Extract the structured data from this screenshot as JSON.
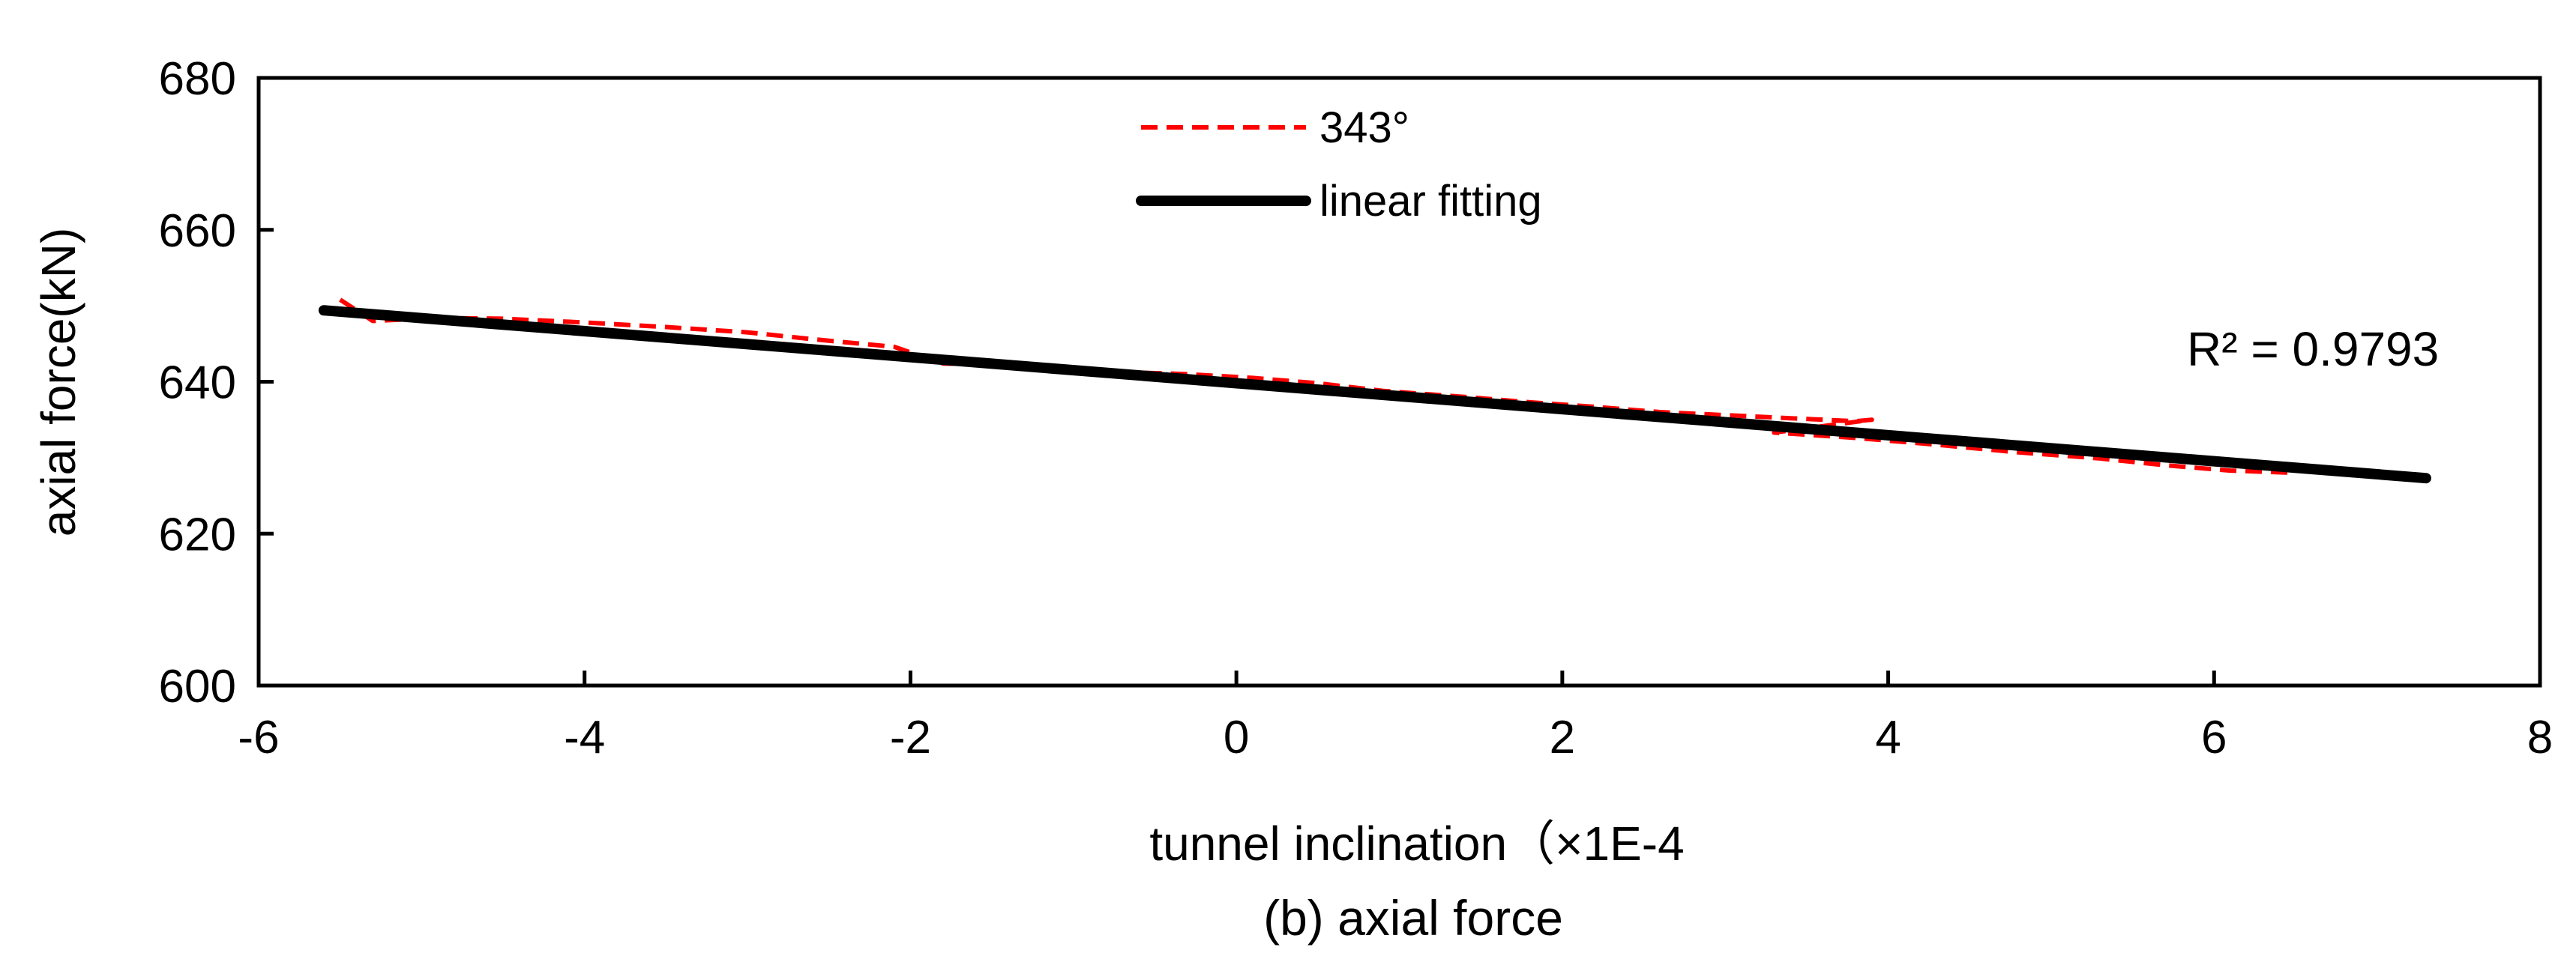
{
  "chart_data": {
    "type": "line",
    "title": "",
    "caption": "(b)  axial force",
    "xlabel": "tunnel inclination（×1E-4",
    "ylabel": "axial force(kN)",
    "xlim": [
      -6,
      8
    ],
    "ylim": [
      600,
      680
    ],
    "xticks": [
      -6,
      -4,
      -2,
      0,
      2,
      4,
      6,
      8
    ],
    "yticks": [
      600,
      620,
      640,
      660,
      680
    ],
    "xtick_labels": [
      "-6",
      "-4",
      "-2",
      "0",
      "2",
      "4",
      "6",
      "8"
    ],
    "ytick_labels": [
      "600",
      "620",
      "640",
      "660",
      "680"
    ],
    "grid": false,
    "legend_position": "top-center",
    "annotation": "R² = 0.9793",
    "series": [
      {
        "name": "343°",
        "style": "dashed",
        "color": "#ff0000",
        "x": [
          -5.5,
          -5.3,
          -4.9,
          -4.5,
          -4.0,
          -3.5,
          -3.0,
          -2.6,
          -2.1,
          -1.8,
          -1.5,
          -1.2,
          -0.9,
          -0.6,
          -0.3,
          0.1,
          0.5,
          0.9,
          1.4,
          1.8,
          2.2,
          2.6,
          3.0,
          3.4,
          3.8,
          3.9,
          3.3,
          3.8,
          4.3,
          4.8,
          5.3,
          5.7,
          6.1,
          6.5
        ],
        "y": [
          650.8,
          648.0,
          648.4,
          648.3,
          647.8,
          647.2,
          646.5,
          645.6,
          644.6,
          642.4,
          642.3,
          641.8,
          641.5,
          641.2,
          641.0,
          640.5,
          639.8,
          638.8,
          638.0,
          637.3,
          636.7,
          636.0,
          635.6,
          635.2,
          634.8,
          635.0,
          633.3,
          632.6,
          631.7,
          630.7,
          629.9,
          629.0,
          628.3,
          628.0
        ]
      },
      {
        "name": "linear fitting",
        "style": "solid",
        "color": "#000000",
        "x": [
          -5.6,
          7.3
        ],
        "y": [
          649.4,
          627.3
        ]
      }
    ]
  }
}
